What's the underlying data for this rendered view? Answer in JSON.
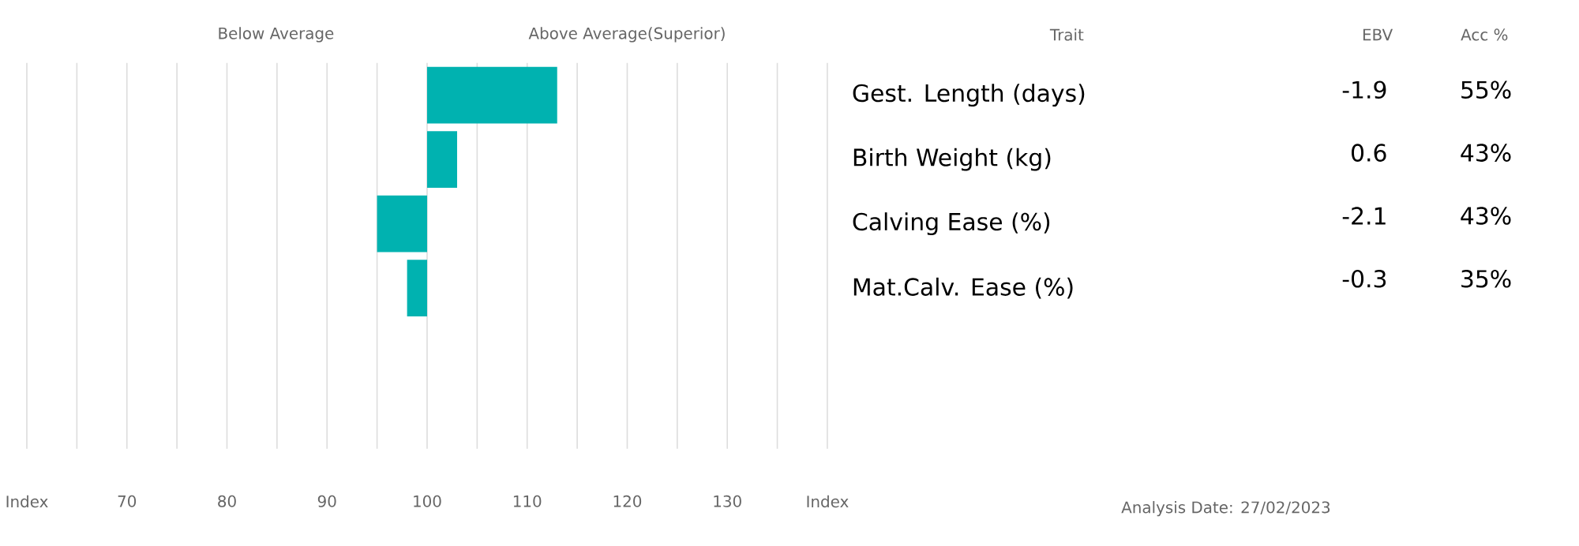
{
  "chart_data": {
    "type": "bar",
    "orientation": "horizontal",
    "categories": [
      "Gest. Length (days)",
      "Birth Weight (kg)",
      "Calving Ease (%)",
      "Mat.Calv. Ease (%)",
      null,
      null
    ],
    "values": [
      13,
      3,
      -5,
      -2,
      null,
      null
    ],
    "base": [
      100,
      100,
      100,
      100,
      null,
      null
    ],
    "color": "#00b2b0",
    "xlim": [
      60,
      140
    ],
    "xticks": [
      {
        "value": 60,
        "label": "Index"
      },
      {
        "value": 65,
        "label": null
      },
      70,
      {
        "value": 75,
        "label": null
      },
      80,
      {
        "value": 85,
        "label": null
      },
      90,
      {
        "value": 95,
        "label": null
      },
      100,
      {
        "value": 105,
        "label": null
      },
      110,
      {
        "value": 115,
        "label": null
      },
      120,
      {
        "value": 125,
        "label": null
      },
      130,
      {
        "value": 135,
        "label": null
      },
      {
        "value": 140,
        "label": "Index"
      }
    ],
    "grid": "x",
    "annotations": [
      "Below Average",
      "Above Average(Superior)",
      "Trait",
      "EBV",
      "Acc %",
      "-1.9",
      "55%",
      "0.6",
      "43%",
      "-2.1",
      "43%",
      "-0.3",
      "35%",
      "Analysis Date: 27/02/2023"
    ]
  }
}
